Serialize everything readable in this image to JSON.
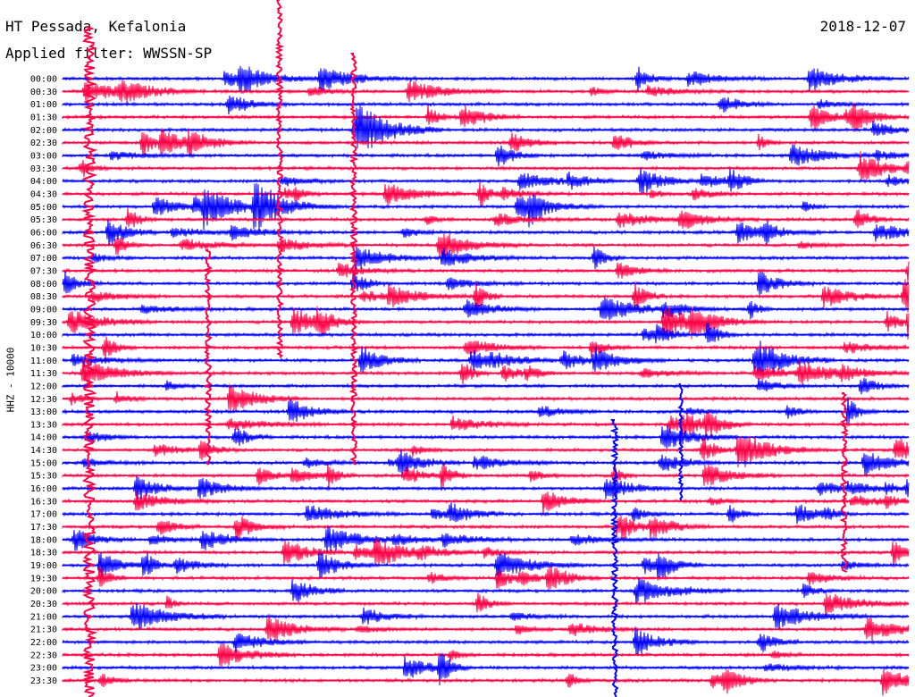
{
  "header": {
    "station": "HT Pessada, Kefalonia",
    "filter": "Applied filter: WWSSN-SP",
    "date": "2018-12-07"
  },
  "chart_data": {
    "type": "line",
    "title": "HT Pessada, Kefalonia",
    "subtitle": "Applied filter: WWSSN-SP",
    "date": "2018-12-07",
    "ylabel": "HHZ - 10000",
    "xlabel": "",
    "grid": false,
    "row_minutes": 30,
    "colors": [
      "#0000ff",
      "#ff0044"
    ],
    "tick_labels": [
      "00:00",
      "00:30",
      "01:00",
      "01:30",
      "02:00",
      "02:30",
      "03:00",
      "03:30",
      "04:00",
      "04:30",
      "05:00",
      "05:30",
      "06:00",
      "06:30",
      "07:00",
      "07:30",
      "08:00",
      "08:30",
      "09:00",
      "09:30",
      "10:00",
      "10:30",
      "11:00",
      "11:30",
      "12:00",
      "12:30",
      "13:00",
      "13:30",
      "14:00",
      "14:30",
      "15:00",
      "15:30",
      "16:00",
      "16:30",
      "17:00",
      "17:30",
      "18:00",
      "18:30",
      "19:00",
      "19:30",
      "20:00",
      "20:30",
      "21:00",
      "21:30",
      "22:00",
      "22:30",
      "23:00",
      "23:30"
    ]
  }
}
